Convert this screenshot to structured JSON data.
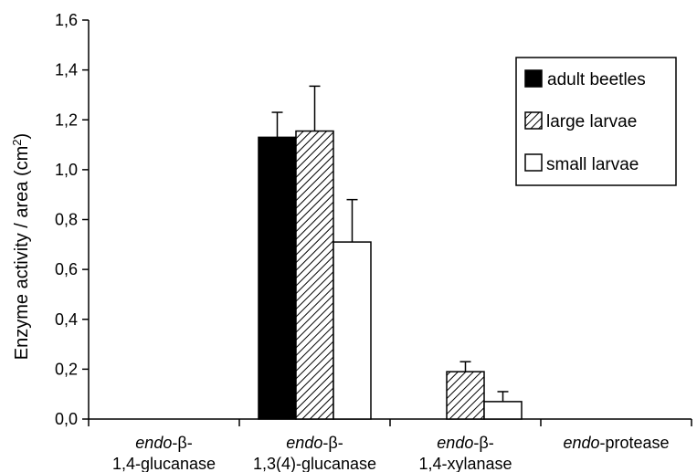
{
  "chart_data": {
    "type": "bar",
    "ylabel_main": "Enzyme activity / area (cm",
    "ylabel_sup": "2",
    "ylabel_close": ")",
    "ylim": [
      0,
      1.6
    ],
    "yticks": [
      "0,0",
      "0,2",
      "0,4",
      "0,6",
      "0,8",
      "1,0",
      "1,2",
      "1,4",
      "1,6"
    ],
    "yticks_values": [
      0,
      0.2,
      0.4,
      0.6,
      0.8,
      1.0,
      1.2,
      1.4,
      1.6
    ],
    "categories": [
      {
        "italic": "endo",
        "rest1": "-β-",
        "line2": "1,4-glucanase"
      },
      {
        "italic": "endo",
        "rest1": "-β-",
        "line2": "1,3(4)-glucanase"
      },
      {
        "italic": "endo",
        "rest1": "-β-",
        "line2": "1,4-xylanase"
      },
      {
        "italic": "endo",
        "rest1": "-protease",
        "line2": ""
      }
    ],
    "series": [
      {
        "name": "adult beetles",
        "fill": "black",
        "values": [
          0,
          1.13,
          0,
          0
        ],
        "errors": [
          0,
          0.1,
          0,
          0
        ]
      },
      {
        "name": "large larvae",
        "fill": "hatch",
        "values": [
          0,
          1.155,
          0.19,
          0
        ],
        "errors": [
          0,
          0.18,
          0.04,
          0
        ]
      },
      {
        "name": "small larvae",
        "fill": "white",
        "values": [
          0,
          0.71,
          0.07,
          0
        ],
        "errors": [
          0,
          0.17,
          0.04,
          0
        ]
      }
    ],
    "legend_position": "top-right",
    "grid": false
  }
}
